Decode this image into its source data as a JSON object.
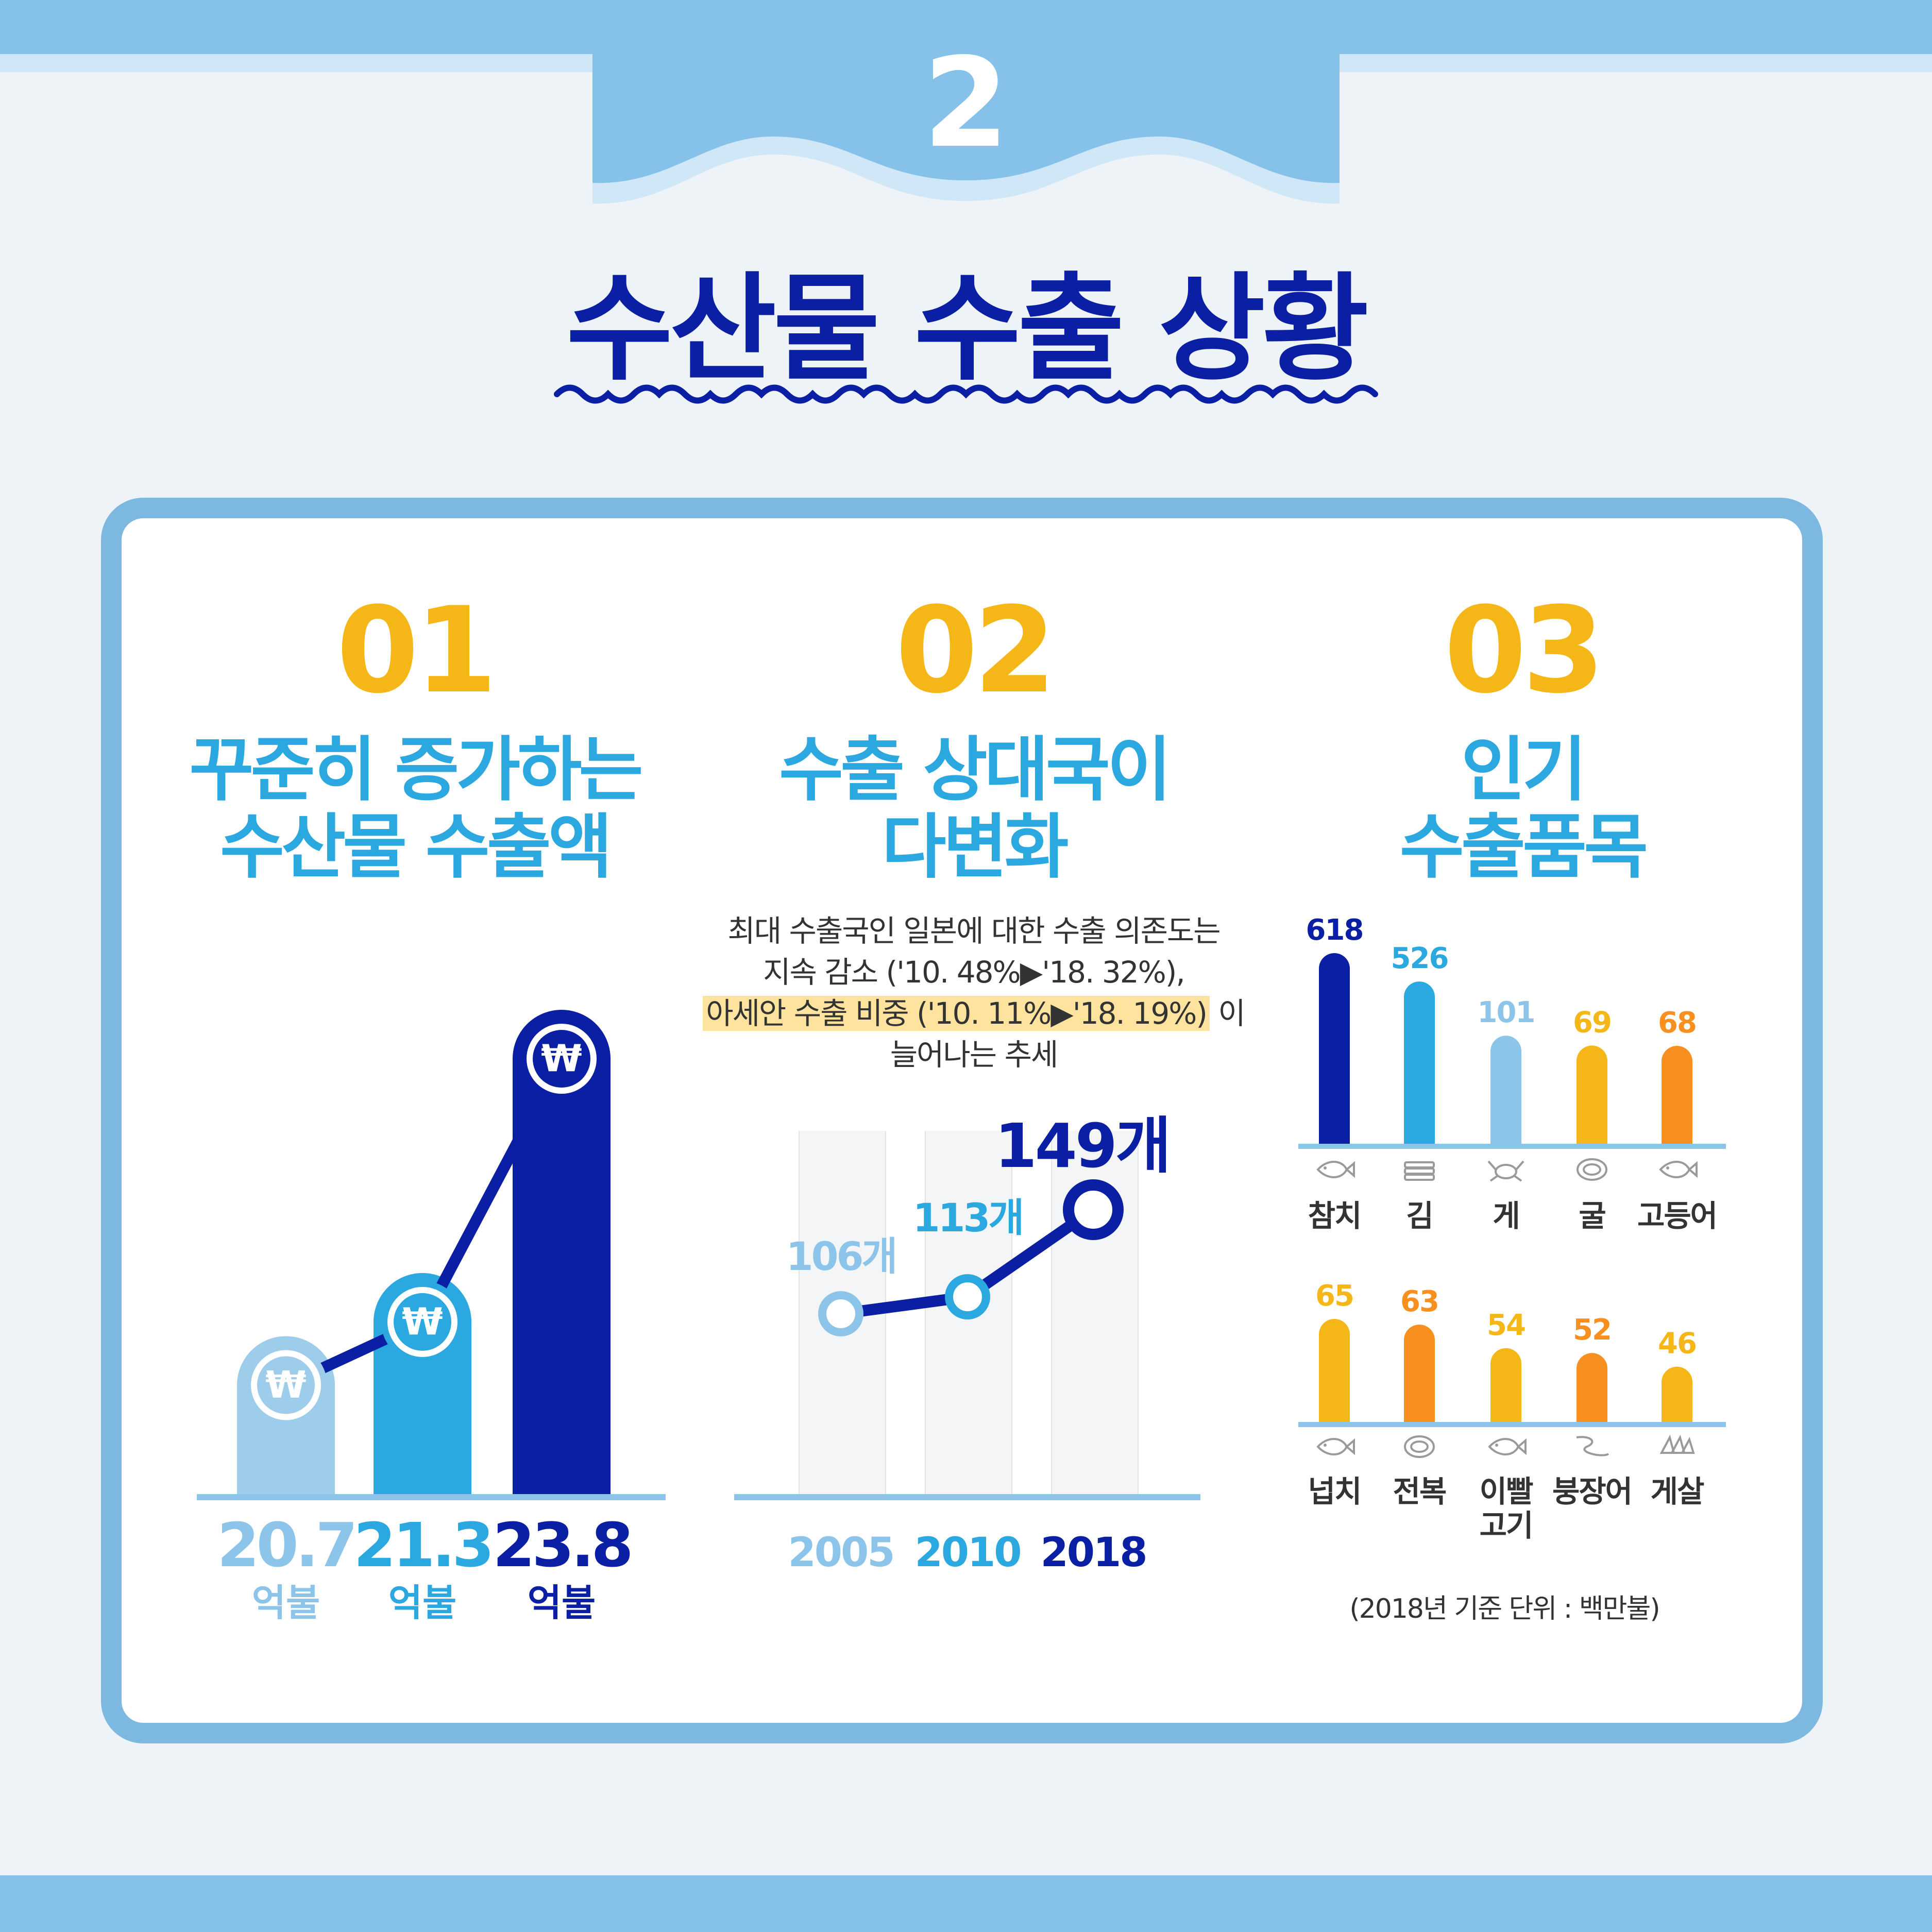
{
  "header": {
    "number": "2",
    "title": "수산물 수출 상황"
  },
  "colors": {
    "navy": "#0a1fa3",
    "blue": "#2ba8e0",
    "light": "#8cc4ea",
    "yellow": "#f5b617",
    "orange": "#f7901e"
  },
  "section1": {
    "number": "01",
    "title_line1": "꾸준히 증가하는",
    "title_line2": "수산물 수출액",
    "icon": "won-coin-icon",
    "unit": "억불",
    "chart_data": {
      "type": "bar",
      "categories": [
        "20.7",
        "21.3",
        "23.8"
      ],
      "values": [
        20.7,
        21.3,
        23.8
      ],
      "value_labels": [
        "20.7",
        "21.3",
        "23.8"
      ],
      "unit_label": "억불",
      "colors": [
        "#9ecdec",
        "#2ba8e0",
        "#0a1fa3"
      ]
    }
  },
  "section2": {
    "number": "02",
    "title_line1": "수출 상대국이",
    "title_line2": "다변화",
    "desc_line1": "최대 수출국인 일본에 대한 수출 의존도는",
    "desc_line2": "지속 감소 ('10. 48%▶'18. 32%),",
    "desc_line3_highlight": "아세안 수출 비중 ('10. 11%▶'18. 19%)",
    "desc_line3_tail": "이",
    "desc_line4": "늘어나는 추세",
    "chart_data": {
      "type": "line",
      "x": [
        "2005",
        "2010",
        "2018"
      ],
      "values": [
        106,
        113,
        149
      ],
      "value_labels": [
        "106개",
        "113개",
        "149개"
      ],
      "colors": [
        "#8cc4ea",
        "#2ba8e0",
        "#0a1fa3"
      ]
    }
  },
  "section3": {
    "number": "03",
    "title_line1": "인기",
    "title_line2": "수출품목",
    "note": "(2018년 기준 단위 : 백만불)",
    "chart_data": [
      {
        "type": "bar",
        "categories": [
          "참치",
          "김",
          "게",
          "굴",
          "고등어"
        ],
        "values": [
          618,
          526,
          101,
          69,
          68
        ],
        "colors": [
          "#0a1fa3",
          "#2ba8e0",
          "#8cc4ea",
          "#f5b617",
          "#f7901e"
        ],
        "icons": [
          "tuna-icon",
          "seaweed-icon",
          "crab-icon",
          "oyster-icon",
          "mackerel-icon"
        ]
      },
      {
        "type": "bar",
        "categories": [
          "넙치",
          "전복",
          "이빨 고기",
          "붕장어",
          "게살"
        ],
        "category_lines": [
          [
            "넙치"
          ],
          [
            "전복"
          ],
          [
            "이빨",
            "고기"
          ],
          [
            "붕장어"
          ],
          [
            "게살"
          ]
        ],
        "values": [
          65,
          63,
          54,
          52,
          46
        ],
        "colors": [
          "#f5b617",
          "#f7901e",
          "#f5b617",
          "#f7901e",
          "#f5b617"
        ],
        "icons": [
          "flatfish-icon",
          "abalone-icon",
          "toothfish-icon",
          "eel-icon",
          "crab-meat-icon"
        ]
      }
    ]
  }
}
